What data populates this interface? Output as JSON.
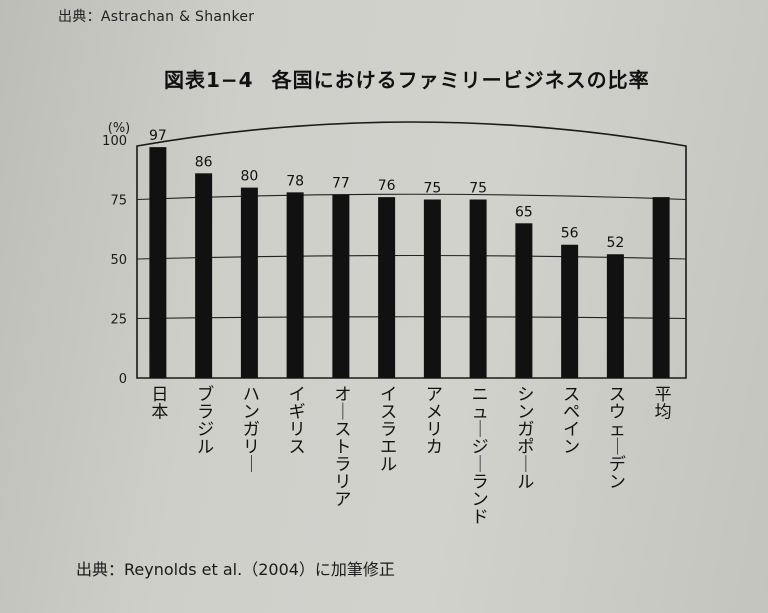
{
  "top_note": "出典：Astrachan & Shanker",
  "figure": {
    "number": "図表1−4",
    "title": "各国におけるファミリービジネスの比率"
  },
  "source": "出典：Reynolds et al.（2004）に加筆修正",
  "chart_data": {
    "type": "bar",
    "title": "各国におけるファミリービジネスの比率",
    "ylabel": "(%)",
    "xlabel": "",
    "ylim": [
      0,
      100
    ],
    "yticks": [
      0,
      25,
      50,
      75,
      100
    ],
    "grid": true,
    "categories": [
      "日本",
      "ブラジル",
      "ハンガリー",
      "イギリス",
      "オーストラリア",
      "イスラエル",
      "アメリカ",
      "ニュージーランド",
      "シンガポール",
      "スペイン",
      "スウェーデン",
      "平均"
    ],
    "values": [
      97,
      86,
      80,
      78,
      77,
      76,
      75,
      75,
      65,
      56,
      52,
      76
    ],
    "data_labels": [
      "97",
      "86",
      "80",
      "78",
      "77",
      "76",
      "75",
      "75",
      "65",
      "56",
      "52",
      ""
    ],
    "bar_color": "#111111"
  }
}
